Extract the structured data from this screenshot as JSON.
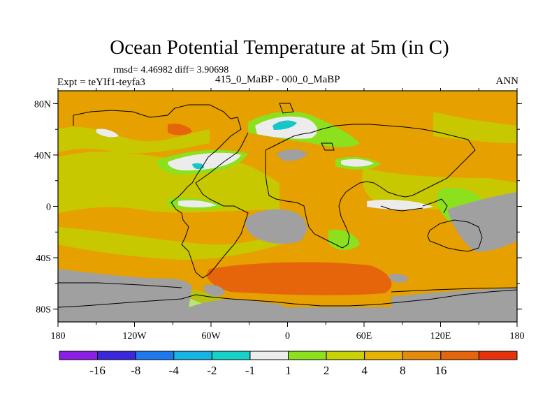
{
  "title": "Ocean Potential Temperature at 5m (in C)",
  "stats": "rmsd= 4.46982 diff= 3.90698",
  "experiment": "Expt = teYIf1-teyfa3",
  "subtitle": "415_0_MaBP - 000_0_MaBP",
  "season": "ANN",
  "map": {
    "x_ticks": [
      "180",
      "120W",
      "60W",
      "0",
      "60E",
      "120E",
      "180"
    ],
    "y_ticks": [
      "80N",
      "40N",
      "0",
      "40S",
      "80S"
    ],
    "land_color": "#a0a0a0"
  },
  "colorbar": {
    "colors": [
      "#8c1ee6",
      "#3c28dc",
      "#1e78f0",
      "#14b4e6",
      "#14d2c8",
      "#ececec",
      "#8ce01e",
      "#c8d200",
      "#e6b400",
      "#e68c0a",
      "#e6640a",
      "#e6320a"
    ],
    "labels": [
      "-16",
      "-8",
      "-4",
      "-2",
      "-1",
      "1",
      "2",
      "4",
      "8",
      "16"
    ]
  }
}
